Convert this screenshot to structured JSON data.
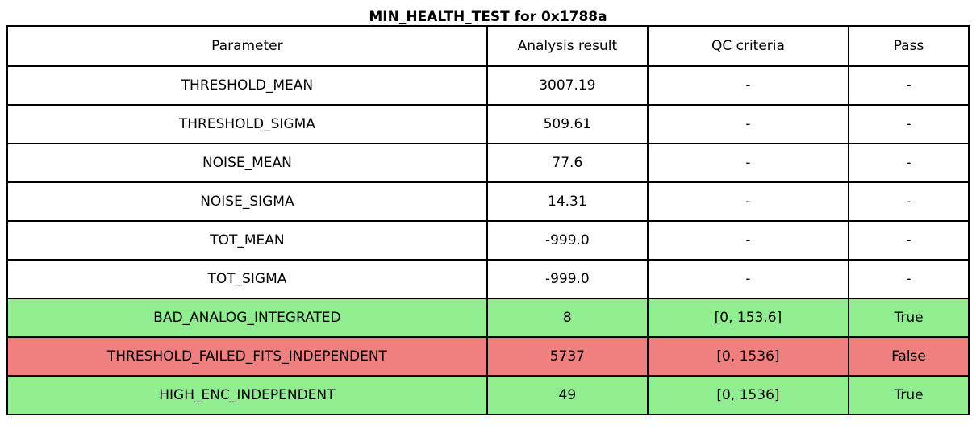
{
  "title": "MIN_HEALTH_TEST for 0x1788a",
  "chart_data": {
    "type": "table",
    "title": "MIN_HEALTH_TEST for 0x1788a",
    "columns": [
      "Parameter",
      "Analysis result",
      "QC criteria",
      "Pass"
    ],
    "rows": [
      [
        "THRESHOLD_MEAN",
        "3007.19",
        "-",
        "-"
      ],
      [
        "THRESHOLD_SIGMA",
        "509.61",
        "-",
        "-"
      ],
      [
        "NOISE_MEAN",
        "77.6",
        "-",
        "-"
      ],
      [
        "NOISE_SIGMA",
        "14.31",
        "-",
        "-"
      ],
      [
        "TOT_MEAN",
        "-999.0",
        "-",
        "-"
      ],
      [
        "TOT_SIGMA",
        "-999.0",
        "-",
        "-"
      ],
      [
        "BAD_ANALOG_INTEGRATED",
        "8",
        "[0, 153.6]",
        "True"
      ],
      [
        "THRESHOLD_FAILED_FITS_INDEPENDENT",
        "5737",
        "[0, 1536]",
        "False"
      ],
      [
        "HIGH_ENC_INDEPENDENT",
        "49",
        "[0, 1536]",
        "True"
      ]
    ],
    "row_status": [
      null,
      null,
      null,
      null,
      null,
      null,
      "pass",
      "fail",
      "pass"
    ],
    "grid": true,
    "legend_position": "none"
  },
  "colors": {
    "pass_row_background": "#90ee90",
    "fail_row_background": "#f08080",
    "border": "#000000",
    "text": "#000000",
    "background": "#ffffff"
  }
}
